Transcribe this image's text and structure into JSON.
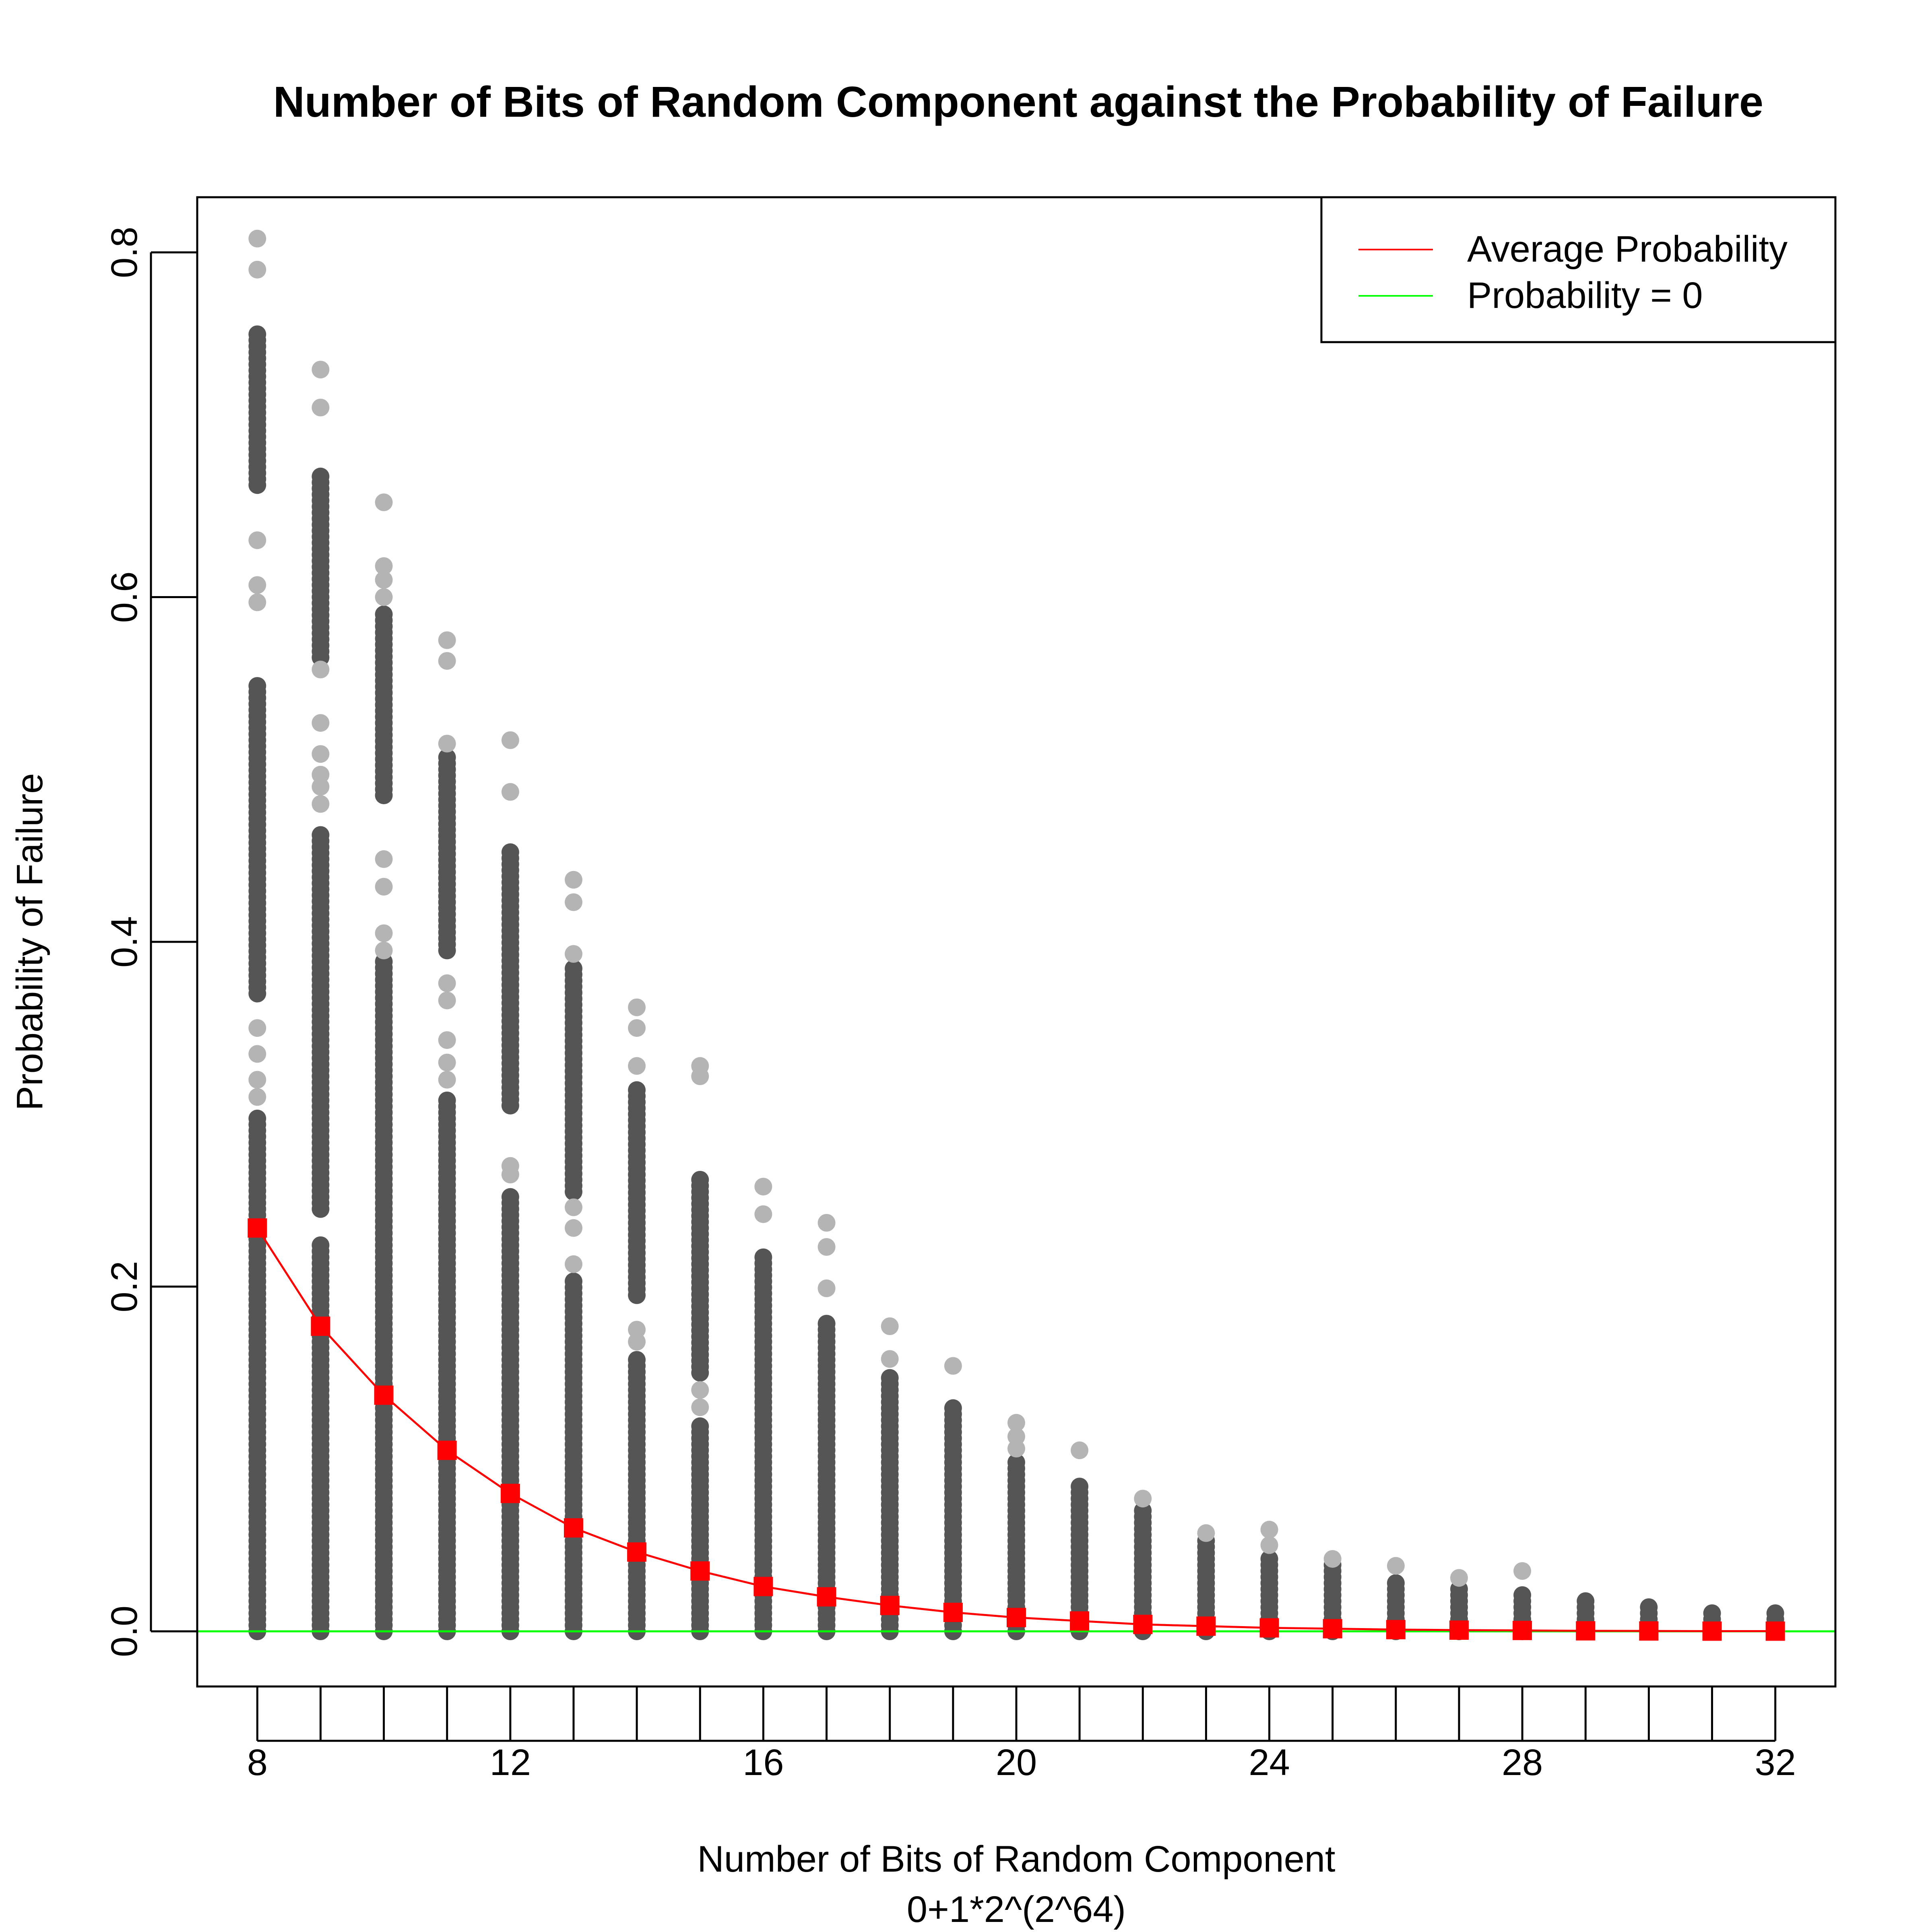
{
  "chart_data": {
    "type": "scatter",
    "title": "Number of Bits of Random Component against the Probability of Failure",
    "xlabel": "Number of Bits of Random Component",
    "xlabel_sub": "0+1*2^(2^64)",
    "ylabel": "Probability of Failure",
    "xlim": [
      7.05,
      32.95
    ],
    "ylim": [
      -0.032,
      0.832
    ],
    "x_ticks": [
      8,
      12,
      16,
      20,
      24,
      28,
      32
    ],
    "x_tick_labels": [
      "8",
      "12",
      "16",
      "20",
      "24",
      "28",
      "32"
    ],
    "y_ticks": [
      0.0,
      0.2,
      0.4,
      0.6,
      0.8
    ],
    "y_tick_labels": [
      "0.0",
      "0.2",
      "0.4",
      "0.6",
      "0.8"
    ],
    "grid": false,
    "legend_position": "top-right",
    "colors": {
      "points_dense": "#555555",
      "points_light": "#b4b4b4",
      "average": "#ff0000",
      "zero_line": "#00ff00",
      "frame": "#000000"
    },
    "series": [
      {
        "name": "Average Probability",
        "type": "line",
        "x": [
          8,
          9,
          10,
          11,
          12,
          13,
          14,
          15,
          16,
          17,
          18,
          19,
          20,
          21,
          22,
          23,
          24,
          25,
          26,
          27,
          28,
          29,
          30,
          31,
          32
        ],
        "values": [
          0.234,
          0.177,
          0.137,
          0.105,
          0.08,
          0.06,
          0.046,
          0.035,
          0.026,
          0.02,
          0.015,
          0.011,
          0.008,
          0.006,
          0.004,
          0.003,
          0.002,
          0.0015,
          0.001,
          0.0007,
          0.0005,
          0.0003,
          0.0002,
          0.0001,
          0.0001
        ]
      },
      {
        "name": "Probability = 0",
        "type": "hline",
        "value": 0
      }
    ],
    "scatter_columns": [
      {
        "x": 8,
        "dense": [
          [
            0,
            0.3
          ],
          [
            0.37,
            0.55
          ],
          [
            0.665,
            0.755
          ]
        ],
        "outliers": [
          0.808,
          0.79,
          0.633,
          0.607,
          0.597,
          0.35,
          0.335,
          0.32,
          0.31
        ]
      },
      {
        "x": 9,
        "dense": [
          [
            0,
            0.225
          ],
          [
            0.245,
            0.465
          ],
          [
            0.565,
            0.67
          ]
        ],
        "outliers": [
          0.732,
          0.71,
          0.558,
          0.527,
          0.509,
          0.497,
          0.49,
          0.48
        ]
      },
      {
        "x": 10,
        "dense": [
          [
            0,
            0.39
          ],
          [
            0.485,
            0.59
          ]
        ],
        "outliers": [
          0.655,
          0.618,
          0.61,
          0.448,
          0.432,
          0.405,
          0.395,
          0.6
        ]
      },
      {
        "x": 11,
        "dense": [
          [
            0,
            0.31
          ],
          [
            0.395,
            0.51
          ]
        ],
        "outliers": [
          0.575,
          0.563,
          0.515,
          0.376,
          0.366,
          0.343,
          0.33,
          0.32
        ]
      },
      {
        "x": 12,
        "dense": [
          [
            0,
            0.255
          ],
          [
            0.305,
            0.455
          ]
        ],
        "outliers": [
          0.517,
          0.487,
          0.27,
          0.265
        ]
      },
      {
        "x": 13,
        "dense": [
          [
            0,
            0.205
          ],
          [
            0.255,
            0.385
          ]
        ],
        "outliers": [
          0.436,
          0.423,
          0.393,
          0.246,
          0.234,
          0.213
        ]
      },
      {
        "x": 14,
        "dense": [
          [
            0,
            0.16
          ],
          [
            0.195,
            0.315
          ]
        ],
        "outliers": [
          0.362,
          0.35,
          0.328,
          0.175,
          0.168
        ]
      },
      {
        "x": 15,
        "dense": [
          [
            0,
            0.12
          ],
          [
            0.15,
            0.265
          ]
        ],
        "outliers": [
          0.328,
          0.322,
          0.14,
          0.13
        ]
      },
      {
        "x": 16,
        "dense": [
          [
            0,
            0.22
          ]
        ],
        "outliers": [
          0.258,
          0.242
        ]
      },
      {
        "x": 17,
        "dense": [
          [
            0,
            0.18
          ]
        ],
        "outliers": [
          0.237,
          0.223,
          0.199
        ]
      },
      {
        "x": 18,
        "dense": [
          [
            0,
            0.15
          ]
        ],
        "outliers": [
          0.177,
          0.158
        ]
      },
      {
        "x": 19,
        "dense": [
          [
            0,
            0.13
          ]
        ],
        "outliers": [
          0.154
        ]
      },
      {
        "x": 20,
        "dense": [
          [
            0,
            0.1
          ]
        ],
        "outliers": [
          0.121,
          0.113,
          0.106
        ]
      },
      {
        "x": 21,
        "dense": [
          [
            0,
            0.087
          ]
        ],
        "outliers": [
          0.105
        ]
      },
      {
        "x": 22,
        "dense": [
          [
            0,
            0.07
          ]
        ],
        "outliers": [
          0.077
        ]
      },
      {
        "x": 23,
        "dense": [
          [
            0,
            0.055
          ]
        ],
        "outliers": [
          0.057
        ]
      },
      {
        "x": 24,
        "dense": [
          [
            0,
            0.045
          ]
        ],
        "outliers": [
          0.059,
          0.05
        ]
      },
      {
        "x": 25,
        "dense": [
          [
            0,
            0.04
          ]
        ],
        "outliers": [
          0.042
        ]
      },
      {
        "x": 26,
        "dense": [
          [
            0,
            0.03
          ]
        ],
        "outliers": [
          0.038
        ]
      },
      {
        "x": 27,
        "dense": [
          [
            0,
            0.025
          ]
        ],
        "outliers": [
          0.031
        ]
      },
      {
        "x": 28,
        "dense": [
          [
            0,
            0.022
          ]
        ],
        "outliers": [
          0.035
        ]
      },
      {
        "x": 29,
        "dense": [
          [
            0,
            0.018
          ]
        ],
        "outliers": []
      },
      {
        "x": 30,
        "dense": [
          [
            0,
            0.015
          ]
        ],
        "outliers": []
      },
      {
        "x": 31,
        "dense": [
          [
            0,
            0.012
          ]
        ],
        "outliers": []
      },
      {
        "x": 32,
        "dense": [
          [
            0,
            0.011
          ]
        ],
        "outliers": []
      }
    ]
  }
}
